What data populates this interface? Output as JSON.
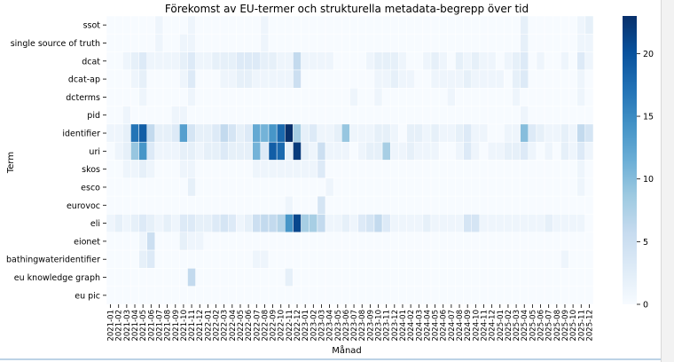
{
  "chart_data": {
    "type": "heatmap",
    "title": "Förekomst av EU-termer och strukturella metadata-begrepp över tid",
    "xlabel": "Månad",
    "ylabel": "Term",
    "rows": [
      "ssot",
      "single source of truth",
      "dcat",
      "dcat-ap",
      "dcterms",
      "pid",
      "identifier",
      "uri",
      "skos",
      "esco",
      "eurovoc",
      "eli",
      "eionet",
      "bathingwateridentifier",
      "eu knowledge graph",
      "eu pic"
    ],
    "months": [
      "2021-01",
      "2021-02",
      "2021-03",
      "2021-04",
      "2021-05",
      "2021-06",
      "2021-07",
      "2021-08",
      "2021-09",
      "2021-10",
      "2021-11",
      "2021-12",
      "2022-01",
      "2022-02",
      "2022-03",
      "2022-04",
      "2022-05",
      "2022-06",
      "2022-07",
      "2022-08",
      "2022-09",
      "2022-10",
      "2022-11",
      "2022-12",
      "2023-01",
      "2023-02",
      "2023-03",
      "2023-04",
      "2023-05",
      "2023-06",
      "2023-07",
      "2023-08",
      "2023-09",
      "2023-10",
      "2023-11",
      "2023-12",
      "2024-01",
      "2024-02",
      "2024-03",
      "2024-04",
      "2024-05",
      "2024-06",
      "2024-07",
      "2024-08",
      "2024-09",
      "2024-10",
      "2024-11",
      "2024-12",
      "2025-01",
      "2025-02",
      "2025-03",
      "2025-04",
      "2025-05",
      "2025-06",
      "2025-07",
      "2025-08",
      "2025-09",
      "2025-10",
      "2025-11",
      "2025-12"
    ],
    "xtick_labels": [
      "2021-01",
      "2021-02",
      "2021-03",
      "2021-04",
      "2021-05",
      "2021-06",
      "2021-07",
      "2021-08",
      "2021-09",
      "2021-10",
      "2021-11",
      "2021-12",
      "2022-01",
      "2022-02",
      "2022-03",
      "2022-04",
      "2022-05",
      "2022-06",
      "2022-07",
      "2022-08",
      "2022-09",
      "2022-10",
      "2022-11",
      "2022-12",
      "2023-01",
      "2023-02",
      "2023-03",
      "2023-04",
      "2023-05",
      "2023-06",
      "2023-07",
      "2023-08",
      "2023-09",
      "2023-10",
      "2023-11",
      "2023-12",
      "2024-01",
      "2024-02",
      "2024-03",
      "2024-04",
      "2024-05",
      "2024-06",
      "2024-07",
      "2024-08",
      "2024-09",
      "2024-10",
      "2024-11",
      "2024-12",
      "2025-01",
      "2025-02",
      "2025-03",
      "2025-04",
      "2025-05",
      "2025-06",
      "2025-07",
      "2025-08",
      "2025-09",
      "2025-10",
      "2025-11",
      "2025-12"
    ],
    "vmin": 0,
    "vmax": 23,
    "colorbar_ticks": [
      0,
      5,
      10,
      15,
      20
    ],
    "colormap": {
      "low": "#f7fbff",
      "mid": "#6baed6",
      "high": "#08306b"
    },
    "values": [
      [
        0,
        0,
        0,
        0,
        0,
        0,
        1,
        0,
        0,
        0,
        1,
        0,
        0,
        0,
        0,
        0,
        0,
        0,
        0,
        1,
        0,
        0,
        0,
        0,
        0,
        0,
        0,
        0,
        0,
        0,
        0,
        0,
        0,
        0,
        0,
        0,
        0,
        0,
        0,
        0,
        0,
        0,
        0,
        0,
        0,
        0,
        0,
        0,
        0,
        0,
        0,
        2,
        0,
        0,
        0,
        0,
        0,
        0,
        1,
        2
      ],
      [
        0,
        0,
        0,
        0,
        0,
        0,
        1,
        0,
        0,
        1,
        1,
        0,
        0,
        0,
        0,
        0,
        0,
        0,
        0,
        1,
        0,
        0,
        0,
        0,
        0,
        0,
        0,
        0,
        0,
        0,
        0,
        0,
        0,
        0,
        0,
        0,
        0,
        0,
        0,
        0,
        0,
        0,
        0,
        0,
        0,
        0,
        0,
        0,
        0,
        0,
        0,
        2,
        0,
        0,
        0,
        0,
        0,
        0,
        1,
        1
      ],
      [
        0,
        0,
        1,
        2,
        3,
        1,
        1,
        1,
        1,
        2,
        3,
        1,
        1,
        2,
        2,
        2,
        3,
        3,
        3,
        2,
        2,
        1,
        1,
        6,
        1,
        1,
        1,
        1,
        0,
        0,
        0,
        0,
        1,
        2,
        2,
        2,
        1,
        0,
        0,
        1,
        2,
        1,
        0,
        2,
        1,
        2,
        1,
        1,
        0,
        1,
        2,
        3,
        0,
        1,
        0,
        0,
        1,
        0,
        3,
        1
      ],
      [
        0,
        0,
        0,
        1,
        2,
        0,
        0,
        0,
        0,
        1,
        3,
        0,
        0,
        0,
        1,
        1,
        2,
        2,
        1,
        1,
        1,
        1,
        1,
        5,
        0,
        0,
        0,
        0,
        0,
        0,
        0,
        0,
        0,
        1,
        1,
        2,
        1,
        1,
        0,
        0,
        1,
        1,
        1,
        1,
        2,
        1,
        1,
        1,
        1,
        0,
        2,
        3,
        0,
        0,
        0,
        0,
        0,
        0,
        1,
        0
      ],
      [
        0,
        0,
        0,
        0,
        1,
        0,
        0,
        0,
        0,
        0,
        1,
        0,
        0,
        0,
        0,
        0,
        0,
        0,
        0,
        0,
        0,
        0,
        0,
        0,
        0,
        0,
        0,
        0,
        0,
        0,
        1,
        0,
        0,
        1,
        0,
        0,
        0,
        0,
        0,
        0,
        0,
        0,
        1,
        0,
        0,
        0,
        0,
        0,
        0,
        0,
        1,
        0,
        0,
        0,
        0,
        0,
        0,
        0,
        1,
        0
      ],
      [
        0,
        0,
        1,
        0,
        0,
        0,
        0,
        0,
        1,
        1,
        0,
        0,
        0,
        0,
        0,
        0,
        0,
        0,
        0,
        0,
        0,
        0,
        0,
        0,
        0,
        0,
        0,
        0,
        0,
        0,
        0,
        0,
        0,
        0,
        0,
        0,
        0,
        0,
        0,
        0,
        0,
        0,
        0,
        0,
        0,
        0,
        0,
        0,
        0,
        0,
        0,
        1,
        0,
        0,
        0,
        0,
        0,
        0,
        0,
        0
      ],
      [
        1,
        1,
        2,
        17,
        19,
        6,
        2,
        2,
        3,
        13,
        4,
        2,
        2,
        3,
        6,
        4,
        2,
        3,
        12,
        11,
        14,
        18,
        23,
        8,
        2,
        3,
        1,
        1,
        2,
        9,
        1,
        1,
        1,
        2,
        2,
        1,
        0,
        2,
        2,
        1,
        2,
        1,
        1,
        2,
        3,
        1,
        1,
        0,
        0,
        1,
        1,
        10,
        3,
        2,
        1,
        1,
        2,
        1,
        6,
        4
      ],
      [
        0,
        1,
        2,
        9,
        14,
        3,
        1,
        1,
        1,
        2,
        2,
        1,
        2,
        2,
        3,
        2,
        2,
        2,
        11,
        3,
        19,
        18,
        2,
        22,
        2,
        1,
        5,
        1,
        1,
        1,
        0,
        1,
        2,
        2,
        8,
        1,
        1,
        2,
        1,
        1,
        1,
        0,
        0,
        1,
        3,
        1,
        0,
        1,
        1,
        2,
        2,
        3,
        1,
        0,
        1,
        0,
        2,
        1,
        3,
        1
      ],
      [
        0,
        0,
        1,
        1,
        2,
        1,
        0,
        0,
        0,
        1,
        1,
        0,
        0,
        0,
        0,
        0,
        0,
        0,
        1,
        1,
        1,
        1,
        1,
        1,
        1,
        1,
        3,
        0,
        0,
        0,
        0,
        0,
        0,
        0,
        0,
        0,
        0,
        0,
        0,
        0,
        0,
        0,
        0,
        0,
        0,
        0,
        0,
        0,
        0,
        0,
        0,
        0,
        0,
        0,
        0,
        0,
        0,
        0,
        1,
        0
      ],
      [
        0,
        0,
        0,
        0,
        0,
        0,
        0,
        0,
        0,
        0,
        2,
        0,
        0,
        0,
        0,
        0,
        0,
        0,
        0,
        0,
        0,
        0,
        0,
        0,
        0,
        0,
        0,
        1,
        0,
        0,
        0,
        0,
        0,
        0,
        0,
        0,
        0,
        0,
        0,
        0,
        0,
        0,
        0,
        0,
        0,
        0,
        0,
        0,
        0,
        0,
        0,
        0,
        0,
        0,
        0,
        0,
        0,
        0,
        1,
        0
      ],
      [
        0,
        0,
        0,
        0,
        0,
        0,
        0,
        0,
        0,
        0,
        0,
        0,
        0,
        0,
        0,
        0,
        0,
        0,
        0,
        0,
        0,
        0,
        1,
        0,
        0,
        0,
        4,
        0,
        0,
        0,
        0,
        0,
        0,
        0,
        0,
        0,
        0,
        0,
        0,
        0,
        0,
        0,
        0,
        0,
        0,
        0,
        0,
        0,
        0,
        0,
        0,
        0,
        0,
        0,
        0,
        0,
        0,
        0,
        0,
        0
      ],
      [
        1,
        2,
        1,
        2,
        3,
        2,
        1,
        2,
        1,
        3,
        3,
        2,
        2,
        3,
        4,
        3,
        1,
        2,
        5,
        6,
        6,
        7,
        14,
        21,
        8,
        8,
        6,
        1,
        1,
        2,
        1,
        3,
        4,
        6,
        3,
        1,
        1,
        1,
        1,
        2,
        1,
        1,
        1,
        1,
        4,
        4,
        1,
        1,
        1,
        1,
        1,
        1,
        1,
        1,
        2,
        1,
        1,
        1,
        1,
        0
      ],
      [
        0,
        0,
        0,
        0,
        1,
        5,
        0,
        0,
        0,
        2,
        1,
        1,
        0,
        0,
        0,
        0,
        0,
        0,
        0,
        0,
        0,
        0,
        0,
        0,
        0,
        0,
        0,
        0,
        0,
        0,
        0,
        0,
        0,
        0,
        0,
        0,
        0,
        0,
        0,
        0,
        0,
        0,
        0,
        0,
        0,
        0,
        0,
        0,
        0,
        0,
        0,
        0,
        0,
        0,
        0,
        0,
        0,
        0,
        0,
        0
      ],
      [
        0,
        0,
        0,
        0,
        2,
        3,
        0,
        0,
        0,
        0,
        0,
        0,
        0,
        0,
        0,
        0,
        0,
        0,
        1,
        1,
        0,
        0,
        0,
        0,
        0,
        0,
        0,
        0,
        0,
        0,
        0,
        0,
        0,
        0,
        0,
        0,
        0,
        0,
        0,
        0,
        0,
        0,
        0,
        0,
        0,
        0,
        0,
        0,
        0,
        0,
        0,
        0,
        0,
        0,
        0,
        0,
        1,
        0,
        0,
        0
      ],
      [
        0,
        0,
        0,
        0,
        0,
        0,
        0,
        0,
        0,
        0,
        6,
        0,
        0,
        0,
        0,
        0,
        0,
        0,
        0,
        0,
        0,
        0,
        2,
        0,
        0,
        0,
        0,
        0,
        0,
        0,
        0,
        0,
        0,
        0,
        0,
        0,
        0,
        0,
        0,
        0,
        0,
        0,
        0,
        0,
        0,
        0,
        0,
        0,
        0,
        0,
        0,
        0,
        0,
        0,
        0,
        0,
        0,
        0,
        0,
        0
      ],
      [
        0,
        0,
        0,
        0,
        0,
        0,
        0,
        0,
        0,
        0,
        0,
        0,
        0,
        0,
        0,
        0,
        0,
        0,
        0,
        0,
        0,
        0,
        0,
        0,
        0,
        0,
        0,
        0,
        0,
        0,
        0,
        0,
        0,
        0,
        0,
        0,
        0,
        0,
        0,
        0,
        0,
        0,
        0,
        0,
        0,
        0,
        0,
        0,
        0,
        0,
        0,
        0,
        0,
        0,
        0,
        0,
        0,
        0,
        0,
        0
      ]
    ]
  }
}
